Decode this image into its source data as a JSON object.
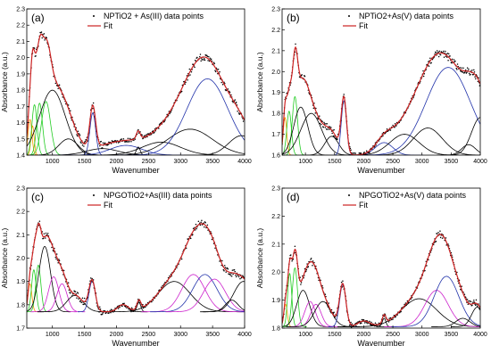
{
  "colors": {
    "data": "#000000",
    "fit": "#cc2222",
    "blue": "#2233aa",
    "black": "#000000",
    "green": "#22cc22",
    "orange": "#ff9900",
    "magenta": "#cc22cc",
    "axis": "#000000"
  },
  "chart_data": [
    {
      "type": "line",
      "panel_label": "(a)",
      "legend": {
        "data_label": "NPTiO2 + As(III) data points",
        "fit_label": "Fit",
        "placement": "top-right"
      },
      "xlabel": "Wavenumber",
      "ylabel": "Absorbance (a.u.)",
      "xlim": [
        600,
        4000
      ],
      "ylim": [
        1.4,
        2.3
      ],
      "xticks": [
        1000,
        1500,
        2000,
        2500,
        3000,
        3500,
        4000
      ],
      "yticks": [
        1.4,
        1.5,
        1.6,
        1.7,
        1.8,
        1.9,
        2.0,
        2.1,
        2.2,
        2.3
      ],
      "baseline": 1.4,
      "components": [
        {
          "color": "orange",
          "center": 650,
          "width": 30,
          "height": 0.22
        },
        {
          "color": "orange",
          "center": 690,
          "width": 25,
          "height": 0.18
        },
        {
          "color": "green",
          "center": 720,
          "width": 40,
          "height": 0.31
        },
        {
          "color": "green",
          "center": 800,
          "width": 45,
          "height": 0.32
        },
        {
          "color": "green",
          "center": 900,
          "width": 70,
          "height": 0.33
        },
        {
          "color": "black",
          "center": 1000,
          "width": 200,
          "height": 0.4
        },
        {
          "color": "black",
          "center": 1250,
          "width": 150,
          "height": 0.1
        },
        {
          "color": "blue",
          "center": 1630,
          "width": 45,
          "height": 0.26
        },
        {
          "color": "black",
          "center": 1780,
          "width": 250,
          "height": 0.04
        },
        {
          "color": "blue",
          "center": 2150,
          "width": 250,
          "height": 0.06
        },
        {
          "color": "black",
          "center": 2340,
          "width": 30,
          "height": 0.05
        },
        {
          "color": "black",
          "center": 2700,
          "width": 300,
          "height": 0.08
        },
        {
          "color": "black",
          "center": 3150,
          "width": 350,
          "height": 0.16
        },
        {
          "color": "blue",
          "center": 3420,
          "width": 320,
          "height": 0.47
        },
        {
          "color": "black",
          "center": 3950,
          "width": 200,
          "height": 0.12
        }
      ]
    },
    {
      "type": "line",
      "panel_label": "(b)",
      "legend": {
        "data_label": "NPTiO2+As(V) data points",
        "fit_label": "Fit",
        "placement": "top-right"
      },
      "xlabel": "Wavenumber",
      "ylabel": "Absorbance (a.u.)",
      "xlim": [
        600,
        4000
      ],
      "ylim": [
        1.6,
        2.3
      ],
      "xticks": [
        1000,
        1500,
        2000,
        2500,
        3000,
        3500,
        4000
      ],
      "yticks": [
        1.6,
        1.7,
        1.8,
        1.9,
        2.0,
        2.1,
        2.2,
        2.3
      ],
      "baseline": 1.6,
      "components": [
        {
          "color": "orange",
          "center": 650,
          "width": 30,
          "height": 0.18
        },
        {
          "color": "green",
          "center": 720,
          "width": 40,
          "height": 0.21
        },
        {
          "color": "green",
          "center": 820,
          "width": 45,
          "height": 0.28
        },
        {
          "color": "black",
          "center": 920,
          "width": 120,
          "height": 0.23
        },
        {
          "color": "black",
          "center": 1100,
          "width": 180,
          "height": 0.2
        },
        {
          "color": "black",
          "center": 1450,
          "width": 120,
          "height": 0.09
        },
        {
          "color": "blue",
          "center": 1660,
          "width": 45,
          "height": 0.26
        },
        {
          "color": "blue",
          "center": 2350,
          "width": 150,
          "height": 0.06
        },
        {
          "color": "black",
          "center": 2700,
          "width": 250,
          "height": 0.1
        },
        {
          "color": "black",
          "center": 3100,
          "width": 250,
          "height": 0.13
        },
        {
          "color": "blue",
          "center": 3450,
          "width": 380,
          "height": 0.42
        },
        {
          "color": "black",
          "center": 3800,
          "width": 120,
          "height": 0.05
        },
        {
          "color": "black",
          "center": 4000,
          "width": 150,
          "height": 0.18
        }
      ]
    },
    {
      "type": "line",
      "panel_label": "(c)",
      "legend": {
        "data_label": "NPGOTiO2+As(III) data points",
        "fit_label": "Fit",
        "placement": "top-right"
      },
      "xlabel": "Wavenumber",
      "ylabel": "Absorbance (a.u.)",
      "xlim": [
        600,
        4000
      ],
      "ylim": [
        1.7,
        2.3
      ],
      "xticks": [
        1000,
        1500,
        2000,
        2500,
        3000,
        3500,
        4000
      ],
      "yticks": [
        1.7,
        1.8,
        1.9,
        2.0,
        2.1,
        2.2,
        2.3
      ],
      "baseline": 1.77,
      "components": [
        {
          "color": "orange",
          "center": 650,
          "width": 30,
          "height": 0.12
        },
        {
          "color": "green",
          "center": 710,
          "width": 35,
          "height": 0.18
        },
        {
          "color": "green",
          "center": 780,
          "width": 40,
          "height": 0.2
        },
        {
          "color": "black",
          "center": 880,
          "width": 90,
          "height": 0.28
        },
        {
          "color": "magenta",
          "center": 1020,
          "width": 80,
          "height": 0.15
        },
        {
          "color": "magenta",
          "center": 1150,
          "width": 80,
          "height": 0.12
        },
        {
          "color": "black",
          "center": 1350,
          "width": 130,
          "height": 0.07
        },
        {
          "color": "blue",
          "center": 1620,
          "width": 50,
          "height": 0.13
        },
        {
          "color": "black",
          "center": 2100,
          "width": 80,
          "height": 0.03
        },
        {
          "color": "black",
          "center": 2350,
          "width": 30,
          "height": 0.04
        },
        {
          "color": "black",
          "center": 2900,
          "width": 250,
          "height": 0.13
        },
        {
          "color": "magenta",
          "center": 3200,
          "width": 180,
          "height": 0.16
        },
        {
          "color": "blue",
          "center": 3380,
          "width": 190,
          "height": 0.16
        },
        {
          "color": "magenta",
          "center": 3530,
          "width": 170,
          "height": 0.14
        },
        {
          "color": "black",
          "center": 3800,
          "width": 100,
          "height": 0.05
        },
        {
          "color": "black",
          "center": 3980,
          "width": 150,
          "height": 0.13
        }
      ]
    },
    {
      "type": "line",
      "panel_label": "(d)",
      "legend": {
        "data_label": "NPGOTiO2+As(V) data points",
        "fit_label": "Fit",
        "placement": "top-right"
      },
      "xlabel": "Wavenumber",
      "ylabel": "Absorbance (a.u.)",
      "xlim": [
        600,
        4000
      ],
      "ylim": [
        1.8,
        2.3
      ],
      "xticks": [
        1000,
        1500,
        2000,
        2500,
        3000,
        3500,
        4000
      ],
      "yticks": [
        1.8,
        1.9,
        2.0,
        2.1,
        2.2,
        2.3
      ],
      "baseline": 1.805,
      "components": [
        {
          "color": "orange",
          "center": 660,
          "width": 30,
          "height": 0.08
        },
        {
          "color": "green",
          "center": 730,
          "width": 35,
          "height": 0.19
        },
        {
          "color": "green",
          "center": 820,
          "width": 45,
          "height": 0.21
        },
        {
          "color": "black",
          "center": 960,
          "width": 110,
          "height": 0.13
        },
        {
          "color": "magenta",
          "center": 1080,
          "width": 90,
          "height": 0.09
        },
        {
          "color": "magenta",
          "center": 1180,
          "width": 90,
          "height": 0.08
        },
        {
          "color": "black",
          "center": 1300,
          "width": 140,
          "height": 0.09
        },
        {
          "color": "blue",
          "center": 1640,
          "width": 55,
          "height": 0.15
        },
        {
          "color": "black",
          "center": 2000,
          "width": 100,
          "height": 0.02
        },
        {
          "color": "black",
          "center": 2350,
          "width": 30,
          "height": 0.03
        },
        {
          "color": "black",
          "center": 2950,
          "width": 300,
          "height": 0.1
        },
        {
          "color": "magenta",
          "center": 3250,
          "width": 200,
          "height": 0.13
        },
        {
          "color": "blue",
          "center": 3420,
          "width": 210,
          "height": 0.18
        },
        {
          "color": "black",
          "center": 3700,
          "width": 120,
          "height": 0.03
        },
        {
          "color": "black",
          "center": 3950,
          "width": 100,
          "height": 0.07
        }
      ]
    }
  ]
}
